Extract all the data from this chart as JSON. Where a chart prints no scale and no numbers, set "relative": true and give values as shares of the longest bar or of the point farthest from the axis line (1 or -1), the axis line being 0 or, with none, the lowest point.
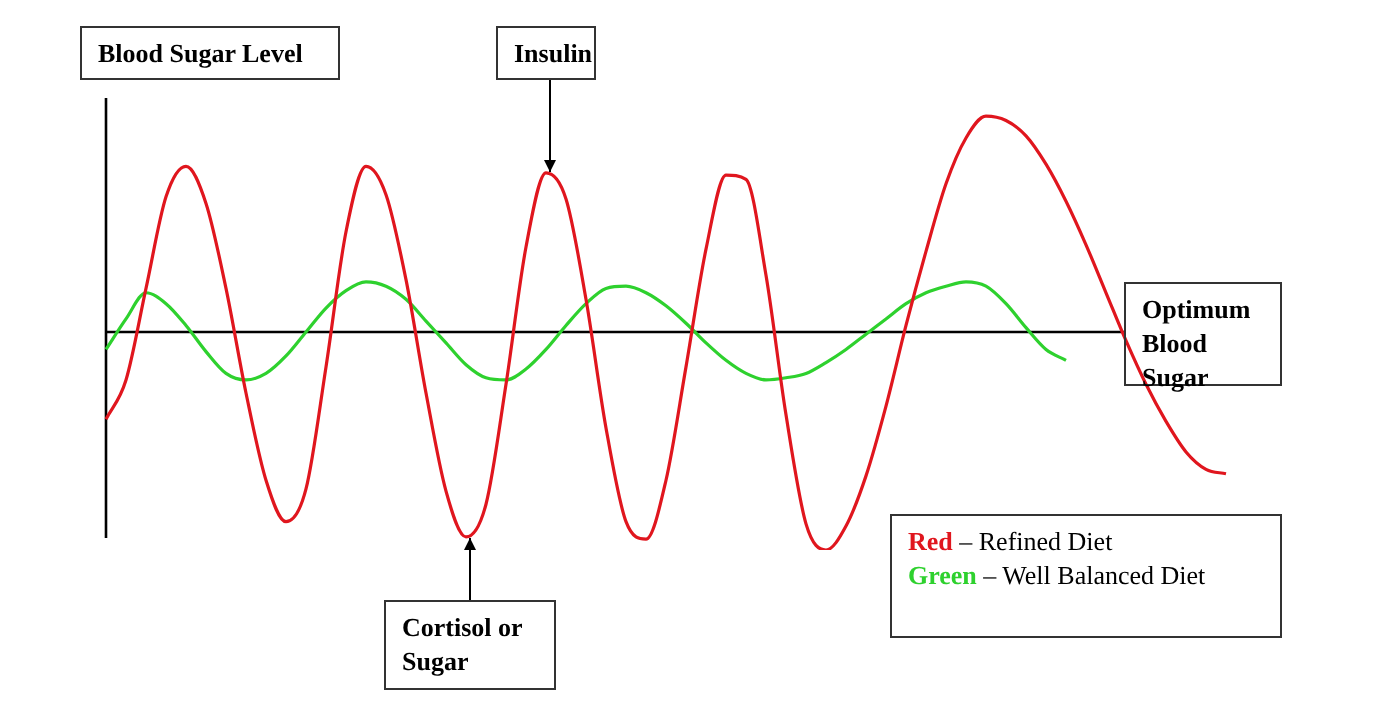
{
  "chart_data": {
    "type": "line",
    "relative": true,
    "ylabel": "Blood Sugar Level",
    "categories": [
      null,
      null,
      null,
      null,
      null,
      null,
      null,
      null,
      null,
      null,
      null,
      null,
      null,
      null,
      null,
      null,
      null,
      null,
      null,
      null,
      null,
      null,
      null,
      null,
      null,
      null,
      null,
      null,
      null,
      null,
      null,
      null,
      null,
      null,
      null,
      null,
      null,
      null,
      null,
      null,
      null,
      null,
      null,
      null,
      null,
      null,
      null,
      null,
      null,
      null,
      null,
      null,
      null,
      null,
      null,
      null,
      null
    ],
    "series": [
      {
        "name": "Red – Refined Diet",
        "color": "#e0161e",
        "values": [
          -0.4,
          -0.22,
          0.2,
          0.62,
          0.76,
          0.59,
          0.2,
          -0.28,
          -0.68,
          -0.87,
          -0.72,
          -0.16,
          0.46,
          0.76,
          0.63,
          0.24,
          -0.28,
          -0.73,
          -0.94,
          -0.79,
          -0.24,
          0.39,
          0.73,
          0.61,
          0.15,
          -0.44,
          -0.87,
          -0.95,
          -0.68,
          -0.16,
          0.38,
          0.72,
          0.7,
          0.26,
          -0.38,
          -0.88,
          -1.0,
          -0.89,
          -0.66,
          -0.34,
          0.03,
          0.37,
          0.68,
          0.89,
          0.99,
          0.97,
          0.9,
          0.77,
          0.6,
          0.4,
          0.18,
          -0.04,
          -0.24,
          -0.41,
          -0.55,
          -0.63,
          -0.65
        ]
      },
      {
        "name": "Green – Well Balanced Diet",
        "color": "#2ed12e",
        "values": [
          -0.08,
          0.06,
          0.18,
          0.13,
          0.03,
          -0.09,
          -0.19,
          -0.22,
          -0.19,
          -0.11,
          0.0,
          0.11,
          0.19,
          0.23,
          0.21,
          0.15,
          0.05,
          -0.05,
          -0.15,
          -0.21,
          -0.22,
          -0.17,
          -0.08,
          0.03,
          0.13,
          0.2,
          0.21,
          0.18,
          0.12,
          0.04,
          -0.05,
          -0.13,
          -0.19,
          -0.22,
          -0.21,
          -0.19,
          -0.14,
          -0.08,
          -0.01,
          0.06,
          0.13,
          0.18,
          0.21,
          0.23,
          0.21,
          0.13,
          0.02,
          -0.08,
          -0.13,
          null,
          null,
          null,
          null,
          null,
          null,
          null,
          null
        ]
      }
    ],
    "ref_lines": [
      {
        "axis": "y",
        "value": 0,
        "label": "Optimum Blood Sugar"
      }
    ],
    "annotations": [
      "Insulin",
      "Cortisol or Sugar"
    ],
    "legend": "bottom right"
  }
}
